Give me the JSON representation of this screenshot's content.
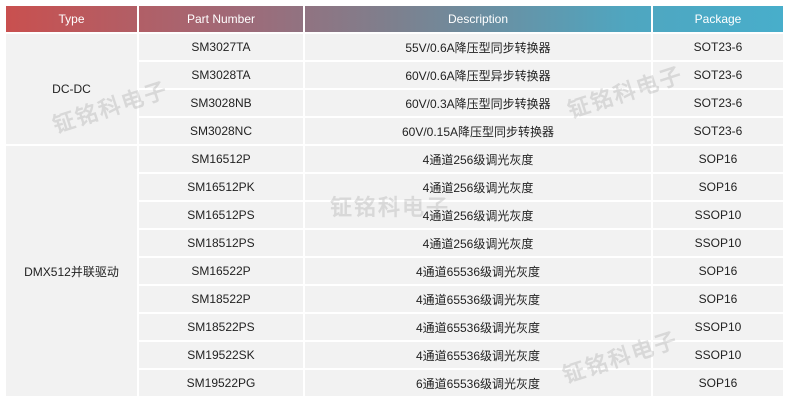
{
  "headers": [
    "Type",
    "Part Number",
    "Description",
    "Package"
  ],
  "groups": [
    {
      "type": "DC-DC",
      "rows": [
        [
          "SM3027TA",
          "55V/0.6A降压型同步转换器",
          "SOT23-6"
        ],
        [
          "SM3028TA",
          "60V/0.6A降压型异步转换器",
          "SOT23-6"
        ],
        [
          "SM3028NB",
          "60V/0.3A降压型同步转换器",
          "SOT23-6"
        ],
        [
          "SM3028NC",
          "60V/0.15A降压型同步转换器",
          "SOT23-6"
        ]
      ]
    },
    {
      "type": "DMX512并联驱动",
      "rows": [
        [
          "SM16512P",
          "4通道256级调光灰度",
          "SOP16"
        ],
        [
          "SM16512PK",
          "4通道256级调光灰度",
          "SOP16"
        ],
        [
          "SM16512PS",
          "4通道256级调光灰度",
          "SSOP10"
        ],
        [
          "SM18512PS",
          "4通道256级调光灰度",
          "SSOP10"
        ],
        [
          "SM16522P",
          "4通道65536级调光灰度",
          "SOP16"
        ],
        [
          "SM18522P",
          "4通道65536级调光灰度",
          "SOP16"
        ],
        [
          "SM18522PS",
          "4通道65536级调光灰度",
          "SSOP10"
        ],
        [
          "SM19522SK",
          "4通道65536级调光灰度",
          "SSOP10"
        ],
        [
          "SM19522PG",
          "6通道65536级调光灰度",
          "SOP16"
        ]
      ]
    }
  ],
  "watermark": "钲铭科电子",
  "colors": {
    "header_start": "#c9504f",
    "header_end": "#48aecb",
    "cell_bg": "#f2f2f2"
  }
}
